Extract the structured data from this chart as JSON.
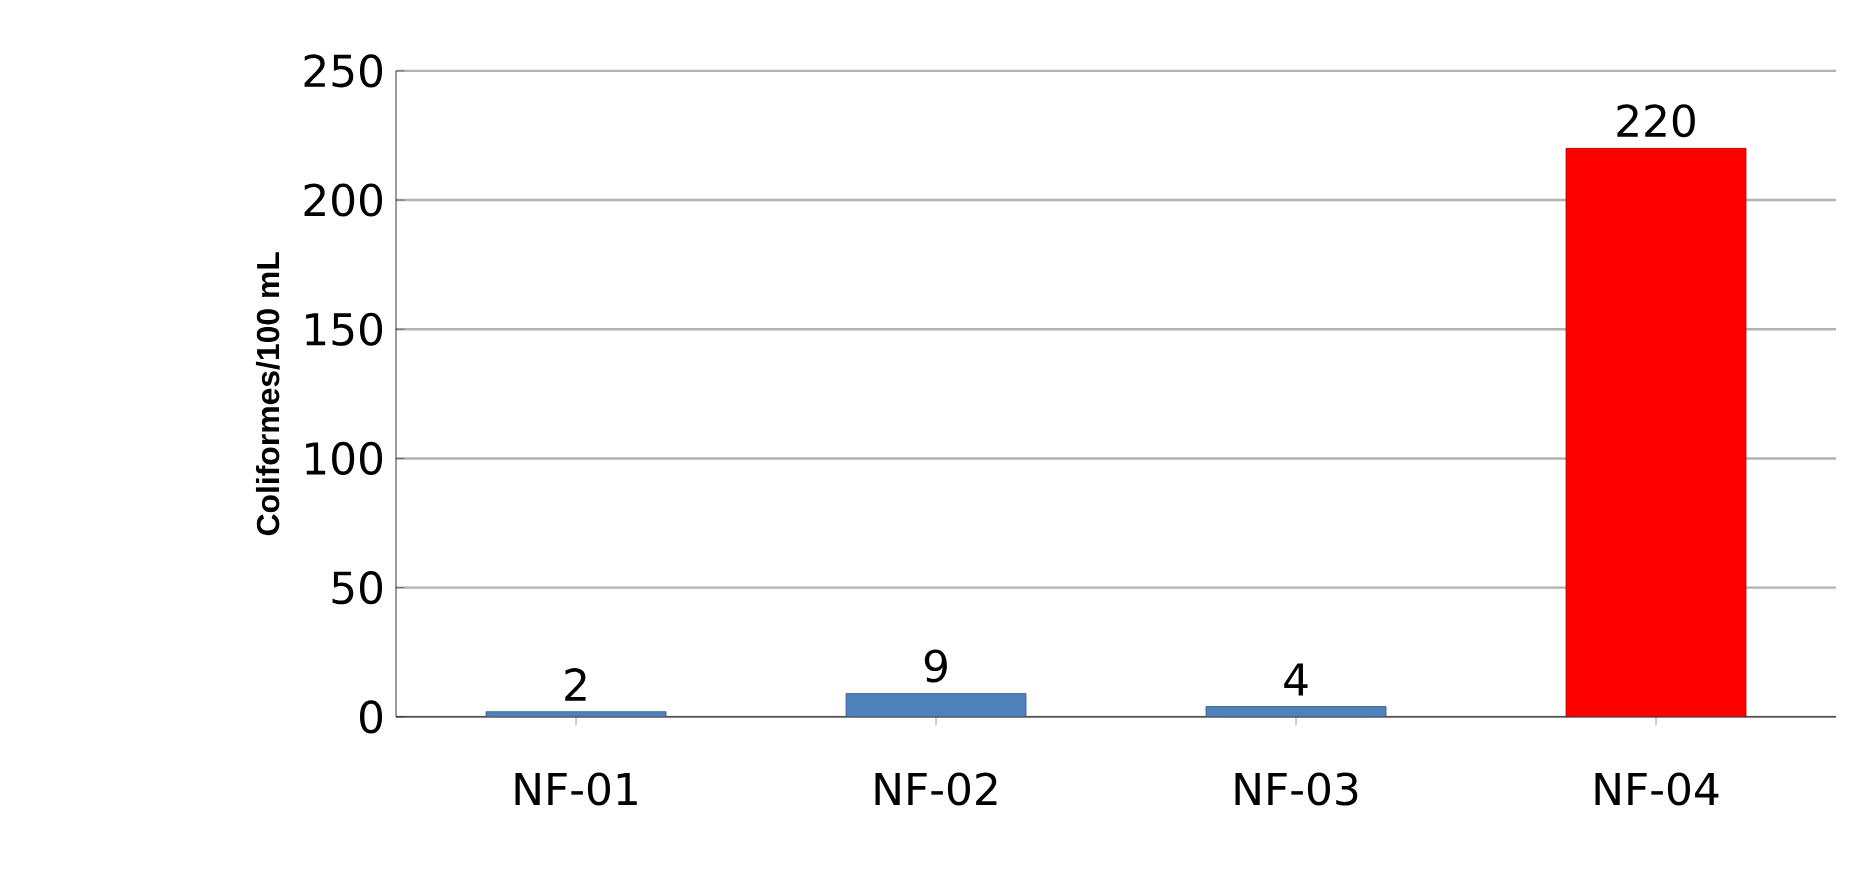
{
  "chart_data": {
    "type": "bar",
    "ylabel": "Coliformes/100 mL",
    "categories": [
      "NF-01",
      "NF-02",
      "NF-03",
      "NF-04"
    ],
    "values": [
      2,
      9,
      4,
      220
    ],
    "colors": [
      "#4f81bd",
      "#4f81bd",
      "#4f81bd",
      "#ff0000"
    ],
    "value_labels": [
      "2",
      "9",
      "4",
      "220"
    ],
    "ylim": [
      0,
      250
    ],
    "yticks": [
      0,
      50,
      100,
      150,
      200,
      250
    ],
    "grid": "y"
  }
}
